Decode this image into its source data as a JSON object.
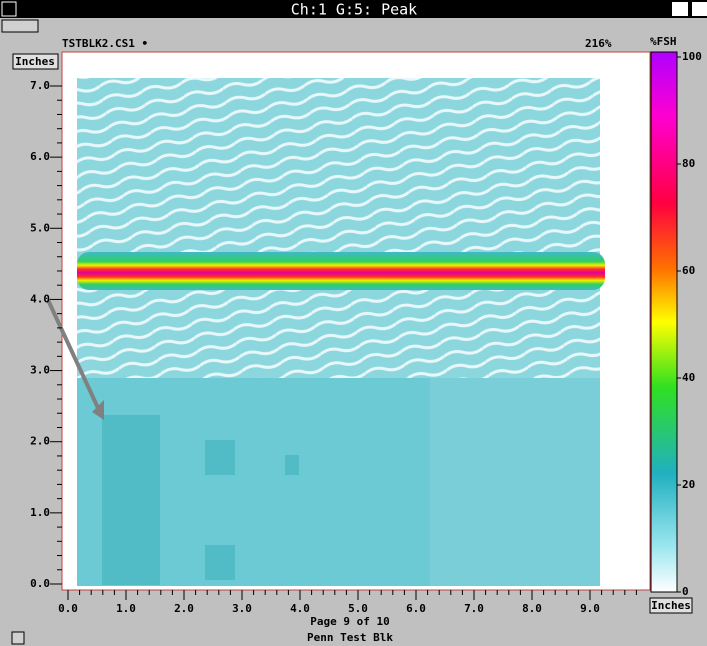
{
  "title_bar": {
    "title": "Ch:1 G:5: Peak"
  },
  "file_bar": {
    "file": "TSTBLK2.CS1 •",
    "gain": "216%",
    "scale_unit": "%FSH"
  },
  "plot": {
    "y_unit": "Inches",
    "x_unit": "Inches",
    "yticks": [
      "7.0",
      "6.0",
      "5.0",
      "4.0",
      "3.0",
      "2.0",
      "1.0",
      "0.0"
    ],
    "xticks": [
      "0.0",
      "1.0",
      "2.0",
      "3.0",
      "4.0",
      "5.0",
      "6.0",
      "7.0",
      "8.0",
      "9.0"
    ]
  },
  "color_scale": {
    "ticks": [
      "100",
      "80",
      "60",
      "40",
      "20",
      "0"
    ]
  },
  "footer": {
    "page": "Page 9 of 10",
    "name": "Penn Test Blk"
  }
}
